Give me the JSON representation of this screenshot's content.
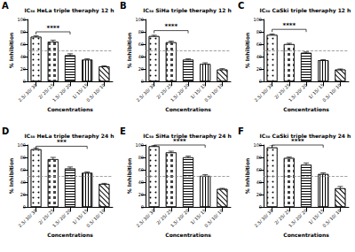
{
  "chart_data": [
    {
      "type": "bar",
      "panel": "A",
      "title": "IC₅₀ HeLa triple theraphy 12 h",
      "x_label": "Concentrations",
      "y_label": "% Inhibition",
      "categories": [
        "2.5/ 30/ 30",
        "2/ 25/ 25",
        "1.5/ 20/ 20",
        "1/ 15/ 15",
        "0.5/ 10/ 10"
      ],
      "values": [
        72,
        64,
        42,
        35,
        24
      ],
      "errors": [
        1.5,
        2.5,
        2.5,
        1.5,
        1.0
      ],
      "color": "#ffffff",
      "ylim": [
        0,
        100
      ],
      "yticks": [
        0,
        20,
        40,
        60,
        80,
        100
      ],
      "reference_line": 50,
      "significance": {
        "from": 0,
        "to": 2,
        "y": 80,
        "label": "****"
      }
    },
    {
      "type": "bar",
      "panel": "B",
      "title": "IC₅₀ SiHa triple theraphy 12 h",
      "x_label": "Concentrations",
      "y_label": "% Inhibition",
      "categories": [
        "2.5/ 30/ 30",
        "2/ 25/ 25",
        "1.5/ 20/ 20",
        "1/ 15/ 15",
        "0.5/ 10/ 10"
      ],
      "values": [
        73,
        63,
        35,
        28,
        19
      ],
      "errors": [
        1.5,
        2.0,
        1.5,
        2.0,
        1.5
      ],
      "color": "#ffffff",
      "ylim": [
        0,
        100
      ],
      "yticks": [
        0,
        20,
        40,
        60,
        80,
        100
      ],
      "reference_line": 50,
      "significance": {
        "from": 0,
        "to": 2,
        "y": 82,
        "label": "****"
      }
    },
    {
      "type": "bar",
      "panel": "C",
      "title": "IC₅₀ CaSki triple theraphy 12 h",
      "x_label": "Concentrations",
      "y_label": "% Inhibition",
      "categories": [
        "2.5/ 30/ 30",
        "2/ 25/ 25",
        "1.5/ 20/ 20",
        "1/ 15/ 15",
        "0.5/ 10/ 10"
      ],
      "values": [
        75,
        60,
        46,
        34,
        19
      ],
      "errors": [
        1.5,
        1.5,
        1.5,
        1.0,
        1.0
      ],
      "color": "#ffffff",
      "ylim": [
        0,
        100
      ],
      "yticks": [
        0,
        20,
        40,
        60,
        80,
        100
      ],
      "reference_line": 50,
      "significance": {
        "from": 0,
        "to": 2,
        "y": 84,
        "label": "****"
      }
    },
    {
      "type": "bar",
      "panel": "D",
      "title": "IC₅₀ HeLa triple theraphy 24 h",
      "x_label": "Concentrations",
      "y_label": "% Inhibition",
      "categories": [
        "2.5/ 30/ 30",
        "2/ 25/ 25",
        "1.5/ 20/ 20",
        "1/ 15/ 15",
        "0.5/ 10/ 10"
      ],
      "values": [
        93,
        77,
        62,
        55,
        37
      ],
      "errors": [
        2.0,
        3.0,
        2.5,
        1.5,
        1.0
      ],
      "color": "#ffffff",
      "ylim": [
        0,
        100
      ],
      "yticks": [
        0,
        20,
        40,
        60,
        80,
        100
      ],
      "reference_line": 50,
      "significance": {
        "from": 0,
        "to": 3,
        "y": 98,
        "label": "***"
      }
    },
    {
      "type": "bar",
      "panel": "E",
      "title": "IC₅₀ SiHa triple theraphy 24 h",
      "x_label": "Concentrations",
      "y_label": "% Inhibition",
      "categories": [
        "2.5/ 30/ 30",
        "2/ 25/ 25",
        "1.5/ 20/ 20",
        "1/ 15/ 15",
        "0.5/ 10/ 10"
      ],
      "values": [
        98,
        88,
        80,
        50,
        29
      ],
      "errors": [
        1.0,
        2.0,
        2.0,
        2.0,
        1.0
      ],
      "color": "#ffffff",
      "ylim": [
        0,
        100
      ],
      "yticks": [
        0,
        20,
        40,
        60,
        80,
        100
      ],
      "reference_line": 50,
      "significance": {
        "from": 0,
        "to": 3,
        "y": 100,
        "label": "****"
      }
    },
    {
      "type": "bar",
      "panel": "F",
      "title": "IC₅₀ CaSki triple theraphy 24 h",
      "x_label": "Concentrations",
      "y_label": "% Inhibition",
      "categories": [
        "2.5/ 30/ 30",
        "2/ 25/ 25",
        "1.5/ 20/ 20",
        "1/ 15/ 15",
        "0.5/ 10/ 10"
      ],
      "values": [
        96,
        79,
        68,
        53,
        30
      ],
      "errors": [
        4.0,
        1.5,
        3.0,
        2.0,
        3.0
      ],
      "color": "#ffffff",
      "ylim": [
        0,
        100
      ],
      "yticks": [
        0,
        20,
        40,
        60,
        80,
        100
      ],
      "reference_line": 50,
      "significance": {
        "from": 0,
        "to": 3,
        "y": 100,
        "label": "****"
      }
    }
  ]
}
